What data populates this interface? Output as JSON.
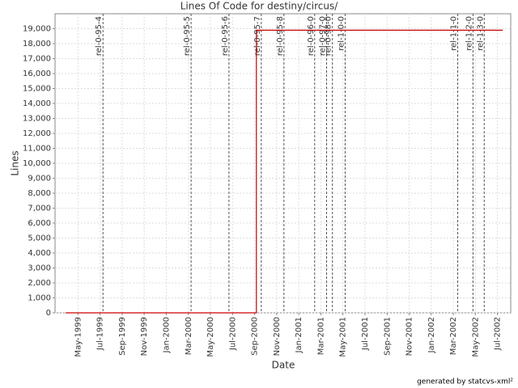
{
  "chart_data": {
    "type": "line",
    "title": "Lines Of Code for destiny/circus/",
    "xlabel": "Date",
    "ylabel": "Lines",
    "footer": "generated by statcvs-xml²",
    "x": [
      1999.24,
      2000.68,
      2000.68,
      2002.54
    ],
    "series": [
      {
        "name": "Lines",
        "color": "#cc0000",
        "values": [
          0,
          0,
          18900,
          18900
        ]
      }
    ],
    "xlim": [
      1999.16,
      2002.6
    ],
    "xticks": [
      {
        "value": 1999.333,
        "label": "May-1999"
      },
      {
        "value": 1999.5,
        "label": "Jul-1999"
      },
      {
        "value": 1999.667,
        "label": "Sep-1999"
      },
      {
        "value": 1999.833,
        "label": "Nov-1999"
      },
      {
        "value": 2000.0,
        "label": "Jan-2000"
      },
      {
        "value": 2000.167,
        "label": "Mar-2000"
      },
      {
        "value": 2000.333,
        "label": "May-2000"
      },
      {
        "value": 2000.5,
        "label": "Jul-2000"
      },
      {
        "value": 2000.667,
        "label": "Sep-2000"
      },
      {
        "value": 2000.833,
        "label": "Nov-2000"
      },
      {
        "value": 2001.0,
        "label": "Jan-2001"
      },
      {
        "value": 2001.167,
        "label": "Mar-2001"
      },
      {
        "value": 2001.333,
        "label": "May-2001"
      },
      {
        "value": 2001.5,
        "label": "Jul-2001"
      },
      {
        "value": 2001.667,
        "label": "Sep-2001"
      },
      {
        "value": 2001.833,
        "label": "Nov-2001"
      },
      {
        "value": 2002.0,
        "label": "Jan-2002"
      },
      {
        "value": 2002.167,
        "label": "Mar-2002"
      },
      {
        "value": 2002.333,
        "label": "May-2002"
      },
      {
        "value": 2002.5,
        "label": "Jul-2002"
      }
    ],
    "ylim": [
      0,
      20000
    ],
    "yticks": [
      0,
      {
        "value": 1000,
        "label": "1,000"
      },
      {
        "value": 2000,
        "label": "2,000"
      },
      {
        "value": 3000,
        "label": "3,000"
      },
      {
        "value": 4000,
        "label": "4,000"
      },
      {
        "value": 5000,
        "label": "5,000"
      },
      {
        "value": 6000,
        "label": "6,000"
      },
      {
        "value": 7000,
        "label": "7,000"
      },
      {
        "value": 8000,
        "label": "8,000"
      },
      {
        "value": 9000,
        "label": "9,000"
      },
      {
        "value": 10000,
        "label": "10,000"
      },
      {
        "value": 11000,
        "label": "11,000"
      },
      {
        "value": 12000,
        "label": "12,000"
      },
      {
        "value": 13000,
        "label": "13,000"
      },
      {
        "value": 14000,
        "label": "14,000"
      },
      {
        "value": 15000,
        "label": "15,000"
      },
      {
        "value": 16000,
        "label": "16,000"
      },
      {
        "value": 17000,
        "label": "17,000"
      },
      {
        "value": 18000,
        "label": "18,000"
      },
      {
        "value": 19000,
        "label": "19,000"
      }
    ],
    "grid": true,
    "markers": [
      {
        "label": "rel-0-95-4",
        "x": 1999.522
      },
      {
        "label": "rel-0-95-5",
        "x": 2000.187
      },
      {
        "label": "rel-0-95-6",
        "x": 2000.473
      },
      {
        "label": "rel-0-95-7",
        "x": 2000.717
      },
      {
        "label": "rel-0-95-8",
        "x": 2000.888
      },
      {
        "label": "rel-0-96-0",
        "x": 2001.12
      },
      {
        "label": "rel-0-97-0",
        "x": 2001.21
      },
      {
        "label": "rel-0-98-0",
        "x": 2001.254
      },
      {
        "label": "rel-1-0-0",
        "x": 2001.35
      },
      {
        "label": "rel-1-1-0",
        "x": 2002.2
      },
      {
        "label": "rel-1-2-0",
        "x": 2002.315
      },
      {
        "label": "rel-1-3-0",
        "x": 2002.4
      }
    ]
  }
}
